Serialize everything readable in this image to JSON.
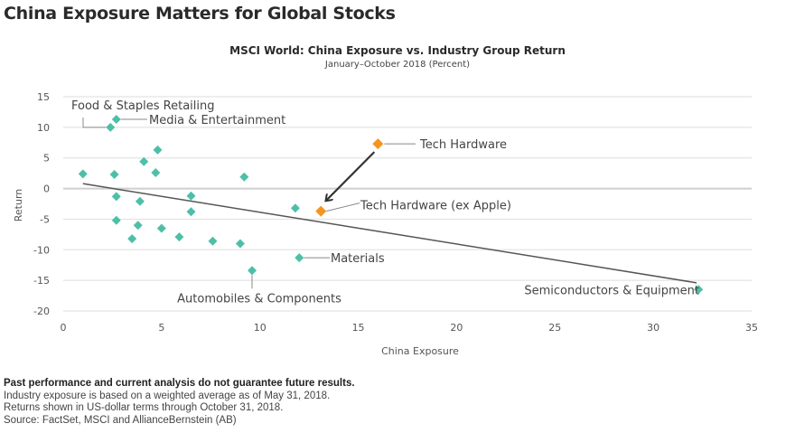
{
  "header": {
    "title": "China Exposure Matters for Global Stocks"
  },
  "footer": {
    "disclaimer": "Past performance and current analysis do not guarantee future results.",
    "notes": [
      "Industry exposure is based on a weighted average as of May 31, 2018.",
      "Returns shown in US-dollar terms through October 31, 2018.",
      "Source: FactSet, MSCI and AllianceBernstein (AB)"
    ]
  },
  "chart_data": {
    "type": "scatter",
    "title": "MSCI World: China Exposure vs. Industry Group Return",
    "subtitle": "January–October 2018 (Percent)",
    "xlabel": "China Exposure",
    "ylabel": "Return",
    "xlim": [
      0,
      35
    ],
    "ylim": [
      -20,
      15
    ],
    "xticks": [
      0,
      5,
      10,
      15,
      20,
      25,
      30,
      35
    ],
    "yticks": [
      15,
      10,
      5,
      0,
      -5,
      -10,
      -15,
      -20
    ],
    "grid": true,
    "colors": {
      "default": "#4dbfa8",
      "highlight": "#f7941d",
      "trendline": "#555555",
      "grid": "#d9d9d9"
    },
    "points": [
      {
        "x": 1.0,
        "y": 2.4,
        "label": ""
      },
      {
        "x": 2.4,
        "y": 10.0,
        "label": "Food & Staples Retailing"
      },
      {
        "x": 2.7,
        "y": 11.3,
        "label": "Media & Entertainment"
      },
      {
        "x": 2.6,
        "y": 2.3,
        "label": ""
      },
      {
        "x": 2.7,
        "y": -1.3,
        "label": ""
      },
      {
        "x": 2.7,
        "y": -5.2,
        "label": ""
      },
      {
        "x": 3.5,
        "y": -8.2,
        "label": ""
      },
      {
        "x": 3.8,
        "y": -6.0,
        "label": ""
      },
      {
        "x": 3.9,
        "y": -2.1,
        "label": ""
      },
      {
        "x": 4.1,
        "y": 4.4,
        "label": ""
      },
      {
        "x": 4.7,
        "y": 2.6,
        "label": ""
      },
      {
        "x": 4.8,
        "y": 6.3,
        "label": ""
      },
      {
        "x": 5.0,
        "y": -6.5,
        "label": ""
      },
      {
        "x": 5.9,
        "y": -7.9,
        "label": ""
      },
      {
        "x": 6.5,
        "y": -1.2,
        "label": ""
      },
      {
        "x": 6.5,
        "y": -3.8,
        "label": ""
      },
      {
        "x": 7.6,
        "y": -8.6,
        "label": ""
      },
      {
        "x": 9.0,
        "y": -9.0,
        "label": ""
      },
      {
        "x": 9.2,
        "y": 1.9,
        "label": ""
      },
      {
        "x": 9.6,
        "y": -13.4,
        "label": "Automobiles & Components"
      },
      {
        "x": 11.8,
        "y": -3.2,
        "label": ""
      },
      {
        "x": 12.0,
        "y": -11.3,
        "label": "Materials"
      },
      {
        "x": 16.0,
        "y": 7.3,
        "label": "Tech Hardware",
        "highlight": true
      },
      {
        "x": 13.1,
        "y": -3.7,
        "label": "Tech Hardware (ex Apple)",
        "highlight": true
      },
      {
        "x": 32.3,
        "y": -16.5,
        "label": "Semiconductors & Equipment"
      }
    ],
    "trendline": {
      "x1": 1.0,
      "y1": 0.8,
      "x2": 32.2,
      "y2": -15.4
    },
    "annotations": [
      {
        "type": "arrow",
        "from": "Tech Hardware",
        "to": "Tech Hardware (ex Apple)"
      }
    ]
  }
}
